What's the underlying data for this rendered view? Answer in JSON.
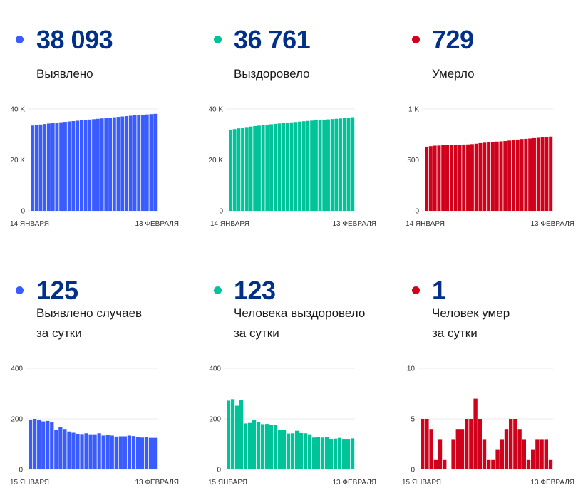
{
  "panels": [
    {
      "id": "cases-total",
      "value": "38 093",
      "label_lines": [
        "Выявлено"
      ],
      "color": "#3a5cff"
    },
    {
      "id": "recovered-total",
      "value": "36 761",
      "label_lines": [
        "Выздоровело"
      ],
      "color": "#00c39a"
    },
    {
      "id": "deaths-total",
      "value": "729",
      "label_lines": [
        "Умерло"
      ],
      "color": "#d0021b"
    },
    {
      "id": "cases-daily",
      "value": "125",
      "label_lines": [
        "Выявлено случаев",
        "за сутки"
      ],
      "color": "#3a5cff"
    },
    {
      "id": "recovered-daily",
      "value": "123",
      "label_lines": [
        "Человека выздоровело",
        "за сутки"
      ],
      "color": "#00c39a"
    },
    {
      "id": "deaths-daily",
      "value": "1",
      "label_lines": [
        "Человек умер",
        "за сутки"
      ],
      "color": "#d0021b"
    }
  ],
  "chart_data": [
    {
      "type": "bar",
      "title": "Выявлено",
      "color": "#3a5cff",
      "x_start_label": "14 ЯНВАРЯ",
      "x_end_label": "13 ФЕВРАЛЯ",
      "ylim": [
        0,
        40000
      ],
      "yticks": [
        0,
        20000,
        40000
      ],
      "ytick_labels": [
        "0",
        "20 K",
        "40 K"
      ],
      "grid": true,
      "values": [
        33500,
        33700,
        33900,
        34100,
        34300,
        34500,
        34650,
        34800,
        34950,
        35100,
        35250,
        35400,
        35550,
        35700,
        35850,
        36000,
        36150,
        36300,
        36450,
        36600,
        36750,
        36900,
        37050,
        37200,
        37350,
        37500,
        37620,
        37740,
        37860,
        37980,
        38093
      ]
    },
    {
      "type": "bar",
      "title": "Выздоровело",
      "color": "#00c39a",
      "x_start_label": "14 ЯНВАРЯ",
      "x_end_label": "13 ФЕВРАЛЯ",
      "ylim": [
        0,
        40000
      ],
      "yticks": [
        0,
        20000,
        40000
      ],
      "ytick_labels": [
        "0",
        "20 K",
        "40 K"
      ],
      "grid": true,
      "values": [
        31800,
        32100,
        32400,
        32650,
        32900,
        33100,
        33300,
        33480,
        33660,
        33840,
        34000,
        34160,
        34320,
        34470,
        34620,
        34760,
        34900,
        35040,
        35180,
        35320,
        35440,
        35560,
        35680,
        35800,
        35920,
        36040,
        36160,
        36280,
        36400,
        36640,
        36761
      ]
    },
    {
      "type": "bar",
      "title": "Умерло",
      "color": "#d0021b",
      "x_start_label": "14 ЯНВАРЯ",
      "x_end_label": "13 ФЕВРАЛЯ",
      "ylim": [
        0,
        1000
      ],
      "yticks": [
        0,
        500,
        1000
      ],
      "ytick_labels": [
        "0",
        "500",
        "1 K"
      ],
      "grid": true,
      "values": [
        630,
        635,
        640,
        641,
        644,
        645,
        646,
        646,
        649,
        651,
        652,
        655,
        659,
        665,
        669,
        673,
        677,
        680,
        682,
        685,
        690,
        694,
        700,
        705,
        707,
        710,
        714,
        717,
        720,
        726,
        729
      ]
    },
    {
      "type": "bar",
      "title": "Выявлено случаев за сутки",
      "color": "#3a5cff",
      "x_start_label": "15 ЯНВАРЯ",
      "x_end_label": "13 ФЕВРАЛЯ",
      "ylim": [
        0,
        400
      ],
      "yticks": [
        0,
        200,
        400
      ],
      "ytick_labels": [
        "0",
        "200",
        "400"
      ],
      "grid": true,
      "values": [
        197,
        200,
        195,
        190,
        192,
        188,
        157,
        168,
        160,
        150,
        145,
        141,
        140,
        143,
        139,
        139,
        143,
        134,
        136,
        134,
        130,
        131,
        131,
        134,
        132,
        129,
        126,
        129,
        125,
        125
      ]
    },
    {
      "type": "bar",
      "title": "Человека выздоровело за сутки",
      "color": "#00c39a",
      "x_start_label": "15 ЯНВАРЯ",
      "x_end_label": "13 ФЕВРАЛЯ",
      "ylim": [
        0,
        400
      ],
      "yticks": [
        0,
        200,
        400
      ],
      "ytick_labels": [
        "0",
        "200",
        "400"
      ],
      "grid": true,
      "values": [
        272,
        278,
        252,
        274,
        182,
        184,
        197,
        186,
        179,
        180,
        175,
        175,
        157,
        155,
        142,
        143,
        153,
        144,
        143,
        139,
        126,
        129,
        126,
        129,
        121,
        122,
        125,
        121,
        121,
        123
      ]
    },
    {
      "type": "bar",
      "title": "Человек умер за сутки",
      "color": "#d0021b",
      "x_start_label": "15 ЯНВАРЯ",
      "x_end_label": "13 ФЕВРАЛЯ",
      "ylim": [
        0,
        10
      ],
      "yticks": [
        0,
        5,
        10
      ],
      "ytick_labels": [
        "0",
        "5",
        "10"
      ],
      "grid": true,
      "values": [
        5,
        5,
        4,
        1,
        3,
        1,
        0,
        3,
        4,
        4,
        5,
        5,
        7,
        5,
        3,
        1,
        1,
        2,
        3,
        4,
        5,
        5,
        4,
        3,
        1,
        2,
        3,
        3,
        3,
        1
      ]
    }
  ]
}
